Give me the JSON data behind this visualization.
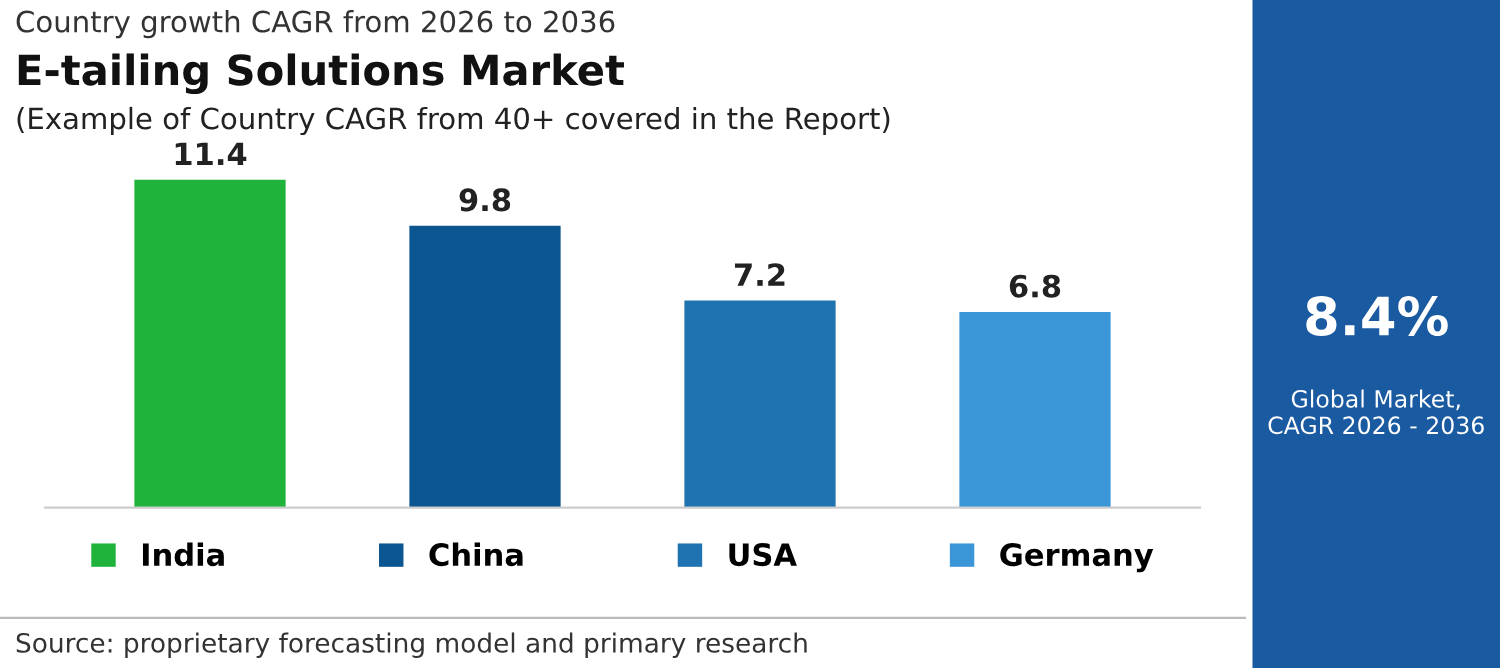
{
  "chart_data": [
    {
      "type": "bar",
      "title": "E-tailing Solutions Market",
      "subtitle": "(Example of Country CAGR from 40+ covered in the Report)",
      "categories": [
        null,
        null,
        null,
        null
      ],
      "series": [
        {
          "name": "India",
          "color": "#1fb33c",
          "values": [
            11.4,
            null,
            null,
            null
          ]
        },
        {
          "name": "China",
          "color": "#0b5591",
          "values": [
            null,
            9.8,
            null,
            null
          ]
        },
        {
          "name": "USA",
          "color": "#1f73b0",
          "values": [
            null,
            null,
            7.2,
            null
          ]
        },
        {
          "name": "Germany",
          "color": "#3a96d6",
          "values": [
            null,
            null,
            null,
            6.8
          ]
        }
      ],
      "stacked": true,
      "data_labels": true,
      "legend": "bottom",
      "annotations": [
        "Country growth CAGR from 2026 to 2036",
        "Source: proprietary forecasting model and primary research"
      ]
    },
    {
      "type": "other",
      "color": "#1a5aa0",
      "title": "8.4%",
      "annotations": [
        "Global Market,\nCAGR 2026 - 2036"
      ]
    }
  ]
}
